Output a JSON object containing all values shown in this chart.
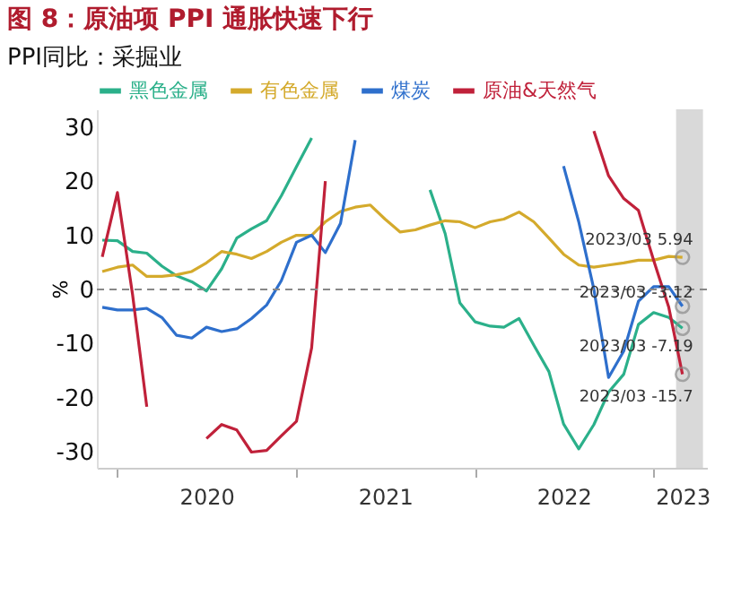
{
  "chart_data": {
    "type": "line",
    "title": "图 8：原油项 PPI 通胀快速下行",
    "subtitle": "PPI同比：采掘业",
    "ylabel": "%",
    "x": [
      "2019-12",
      "2020-01",
      "2020-02",
      "2020-03",
      "2020-04",
      "2020-05",
      "2020-06",
      "2020-07",
      "2020-08",
      "2020-09",
      "2020-10",
      "2020-11",
      "2020-12",
      "2021-01",
      "2021-02",
      "2021-03",
      "2021-04",
      "2021-05",
      "2021-06",
      "2021-07",
      "2021-08",
      "2021-09",
      "2021-10",
      "2021-11",
      "2021-12",
      "2022-01",
      "2022-02",
      "2022-03",
      "2022-04",
      "2022-05",
      "2022-06",
      "2022-07",
      "2022-08",
      "2022-09",
      "2022-10",
      "2022-11",
      "2022-12",
      "2023-01",
      "2023-02",
      "2023-03"
    ],
    "series": [
      {
        "name": "黑色金属",
        "color": "#2bb08a",
        "values": [
          9.1,
          9,
          7,
          6.7,
          4.3,
          2.5,
          1.4,
          -0.3,
          3.8,
          9.5,
          11.2,
          12.7,
          17.3,
          22.7,
          28,
          null,
          null,
          null,
          null,
          null,
          null,
          null,
          18.4,
          10.3,
          -2.5,
          -6,
          -6.8,
          -7,
          -5.4,
          -10.3,
          -15.2,
          -24.9,
          -29.5,
          -25,
          -19,
          -15.7,
          -6.5,
          -4.3,
          -5.2,
          -7.19
        ]
      },
      {
        "name": "有色金属",
        "color": "#d4aa2c",
        "values": [
          3.3,
          4.1,
          4.5,
          2.4,
          2.4,
          2.7,
          3.3,
          4.9,
          7,
          6.5,
          5.7,
          7,
          8.7,
          10,
          10,
          12.5,
          14.4,
          15.2,
          15.6,
          13,
          10.6,
          11,
          11.9,
          12.7,
          12.5,
          11.4,
          12.5,
          13,
          14.3,
          12.5,
          9.5,
          6.5,
          4.5,
          4.1,
          4.5,
          4.9,
          5.4,
          5.4,
          6.1,
          5.94
        ]
      },
      {
        "name": "煤炭",
        "color": "#2e6fcc",
        "values": [
          -3.3,
          -3.8,
          -3.8,
          -3.5,
          -5.2,
          -8.5,
          -9,
          -7,
          -7.8,
          -7.3,
          -5.4,
          -2.9,
          1.6,
          8.7,
          10,
          6.8,
          12.2,
          27.6,
          null,
          null,
          null,
          null,
          null,
          null,
          null,
          null,
          null,
          null,
          null,
          null,
          null,
          22.8,
          12.5,
          0,
          -16.3,
          -11.4,
          -2.2,
          0.5,
          0.5,
          -3.12
        ]
      },
      {
        "name": "原油&天然气",
        "color": "#c0213a",
        "values": [
          6,
          17.9,
          -1,
          -21.7,
          null,
          null,
          null,
          -27.6,
          -25,
          -26,
          -30.1,
          -29.8,
          -27.1,
          -24.4,
          -10.8,
          20,
          null,
          null,
          null,
          null,
          null,
          null,
          null,
          null,
          null,
          null,
          null,
          null,
          null,
          null,
          null,
          null,
          null,
          29.3,
          21,
          16.8,
          14.6,
          5.4,
          -3.3,
          -15.7
        ]
      }
    ],
    "xlim": [
      "2019-11-20",
      "2023-04-20"
    ],
    "xticks": [
      {
        "value": "2020-01-01",
        "label": null
      },
      {
        "value": "2020-07-01",
        "label": "2020"
      },
      {
        "value": "2021-01-01",
        "label": null
      },
      {
        "value": "2021-07-01",
        "label": "2021"
      },
      {
        "value": "2022-01-01",
        "label": null
      },
      {
        "value": "2022-07-01",
        "label": "2022"
      },
      {
        "value": "2023-01-01",
        "label": null
      },
      {
        "value": "2023-03-01",
        "label": "2023"
      }
    ],
    "ylim": [
      -33,
      33.3
    ],
    "yticks": [
      -30,
      -20,
      -10,
      0,
      10,
      20,
      30
    ],
    "grid": false,
    "legend": "top",
    "marker": "none",
    "line_style": "solid",
    "ref_lines": [
      {
        "axis": "y",
        "value": 0,
        "color": "#888888",
        "line_style": "dashed"
      }
    ],
    "bands": [
      {
        "axis": "x",
        "from": "2023-02-16",
        "to": "2023-04-12",
        "color": "#d9d9d9"
      }
    ],
    "annotations": [
      {
        "text": "2023/03 5.94",
        "x": "2023-03",
        "y": 5.94
      },
      {
        "text": "2023/03 -3.12",
        "x": "2023-03",
        "y": -3.12
      },
      {
        "text": "2023/03 -7.19",
        "x": "2023-03",
        "y": -7.19
      },
      {
        "text": "2023/03 -15.7",
        "x": "2023-03",
        "y": -15.7
      }
    ]
  }
}
